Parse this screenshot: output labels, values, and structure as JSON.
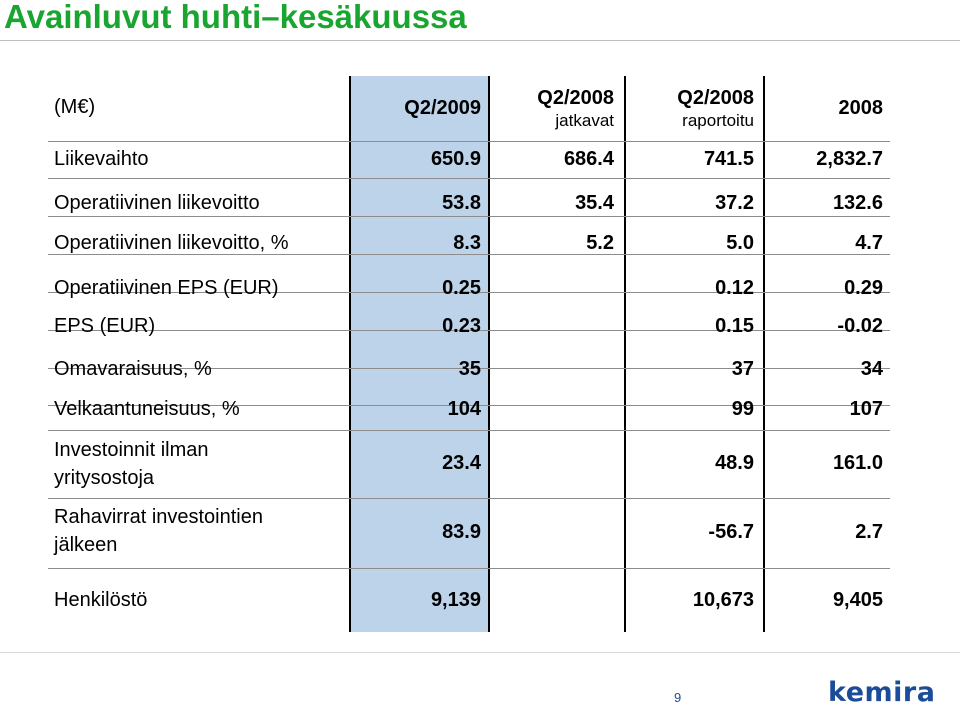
{
  "title": "Avainluvut huhti–kesäkuussa",
  "header": {
    "row_label": "(M€)",
    "columns": [
      {
        "main": "Q2/2009",
        "sub": ""
      },
      {
        "main": "Q2/2008",
        "sub": "jatkavat"
      },
      {
        "main": "Q2/2008",
        "sub": "raportoitu"
      },
      {
        "main": "2008",
        "sub": ""
      }
    ]
  },
  "rows": [
    {
      "label": "Liikevaihto",
      "values": [
        "650.9",
        "686.4",
        "741.5",
        "2,832.7"
      ]
    },
    {
      "label": "Operatiivinen liikevoitto",
      "values": [
        "53.8",
        "35.4",
        "37.2",
        "132.6"
      ]
    },
    {
      "label": "Operatiivinen liikevoitto, %",
      "values": [
        "8.3",
        "5.2",
        "5.0",
        "4.7"
      ]
    },
    {
      "label": "Operatiivinen EPS (EUR)",
      "values": [
        "0.25",
        "",
        "0.12",
        "0.29"
      ]
    },
    {
      "label": "EPS (EUR)",
      "values": [
        "0.23",
        "",
        "0.15",
        "-0.02"
      ]
    },
    {
      "label": "Omavaraisuus, %",
      "values": [
        "35",
        "",
        "37",
        "34"
      ]
    },
    {
      "label": "Velkaantuneisuus, %",
      "values": [
        "104",
        "",
        "99",
        "107"
      ]
    },
    {
      "label_line1": "Investoinnit ilman",
      "label_line2": "yritysostoja",
      "values": [
        "23.4",
        "",
        "48.9",
        "161.0"
      ]
    },
    {
      "label_line1": "Rahavirrat investointien",
      "label_line2": "jälkeen",
      "values": [
        "83.9",
        "",
        "-56.7",
        "2.7"
      ]
    },
    {
      "label": "Henkilöstö",
      "values": [
        "9,139",
        "",
        "10,673",
        "9,405"
      ]
    }
  ],
  "footer": {
    "page_number": "9",
    "logo_text": "kemira"
  },
  "colors": {
    "title": "#1aa530",
    "highlight_column": "#bcd3ea",
    "logo": "#1b4c9a"
  }
}
